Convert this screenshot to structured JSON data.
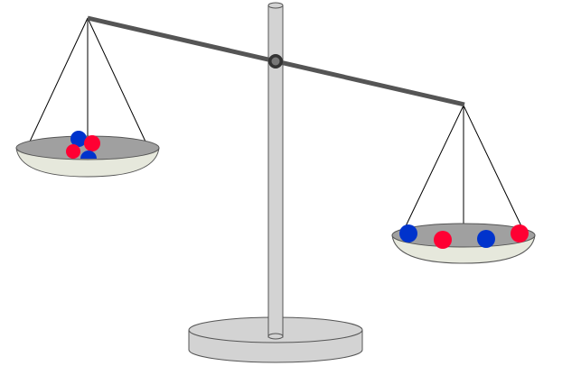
{
  "colors": {
    "background": "#ffffff",
    "stand": "#d3d3d3",
    "stand_outline": "#555555",
    "beam": "#555555",
    "pivot": "#333333",
    "rope": "#000000",
    "pan_outer": "#e6e8dc",
    "pan_inner": "#a0a0a0",
    "ball_red": "#ff0033",
    "ball_blue": "#0033cc"
  },
  "scale": {
    "tilt": "right-side-down",
    "left_pan": {
      "balls": [
        {
          "color": "blue"
        },
        {
          "color": "red"
        },
        {
          "color": "red"
        },
        {
          "color": "blue"
        }
      ]
    },
    "right_pan": {
      "balls": [
        {
          "color": "blue"
        },
        {
          "color": "red"
        },
        {
          "color": "blue"
        },
        {
          "color": "red"
        }
      ]
    }
  }
}
